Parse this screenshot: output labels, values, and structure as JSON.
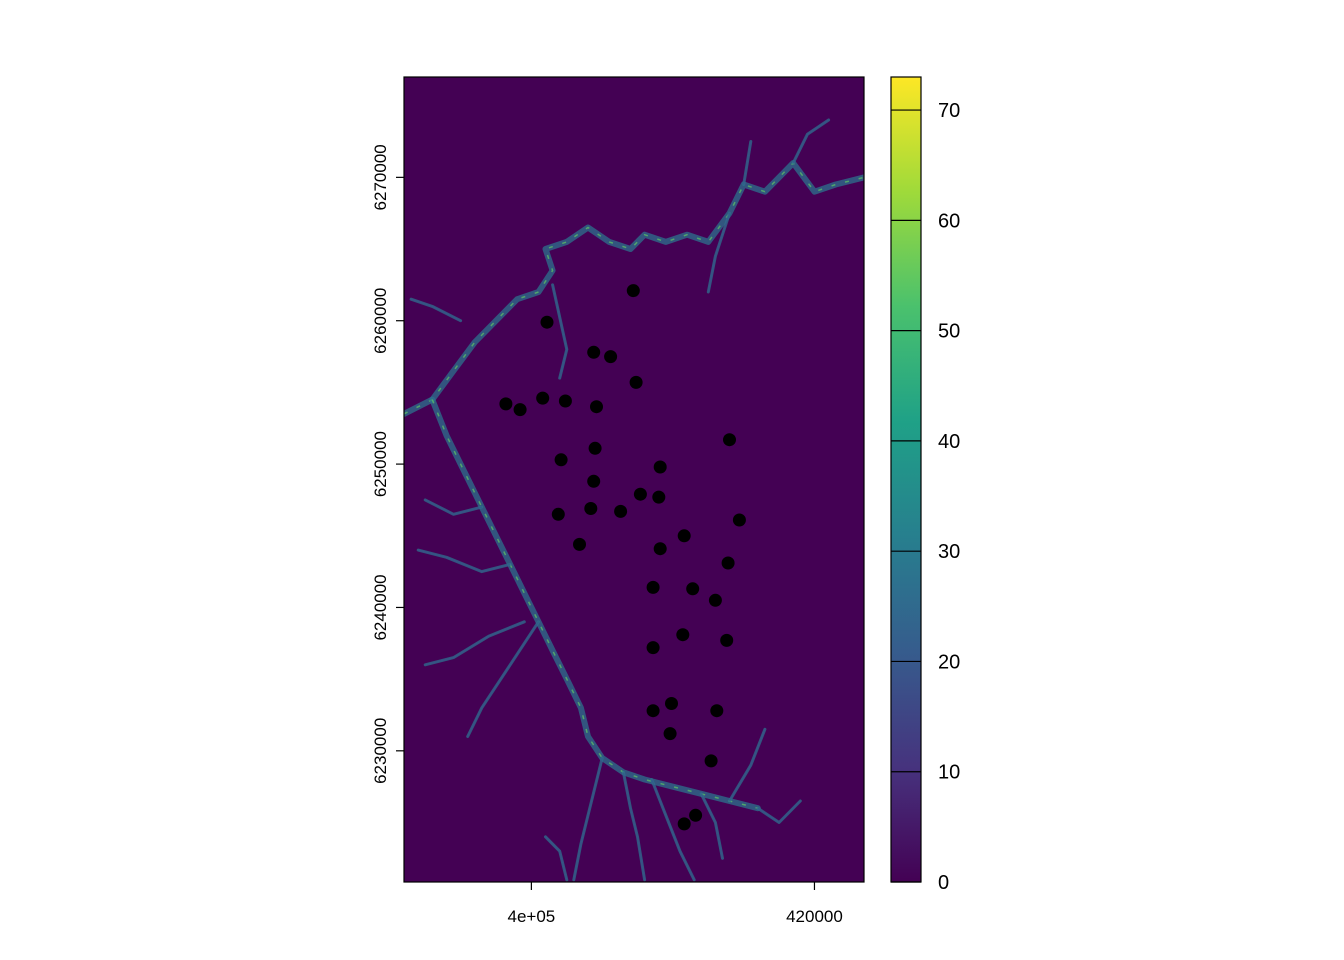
{
  "chart_data": {
    "type": "scatter",
    "title": "",
    "xlabel": "",
    "ylabel": "",
    "raster_fill": "#440154",
    "xlim": [
      391000,
      423500
    ],
    "ylim": [
      6220850,
      6277000
    ],
    "x_ticks": [
      {
        "value": 400000,
        "label": "4e+05"
      },
      {
        "value": 420000,
        "label": "420000"
      }
    ],
    "y_ticks": [
      {
        "value": 6230000,
        "label": "6230000"
      },
      {
        "value": 6240000,
        "label": "6240000"
      },
      {
        "value": 6250000,
        "label": "6250000"
      },
      {
        "value": 6260000,
        "label": "6260000"
      },
      {
        "value": 6270000,
        "label": "6270000"
      }
    ],
    "colorbar": {
      "min": 0,
      "max": 73,
      "ticks": [
        0,
        10,
        20,
        30,
        40,
        50,
        60,
        70
      ],
      "colors": [
        "#440154",
        "#46337E",
        "#365C8D",
        "#277F8E",
        "#1FA187",
        "#4AC16D",
        "#9FDA3A",
        "#FDE725"
      ]
    },
    "river_color": "#2C728E",
    "river_highlight": "#5EC962",
    "rivers": [
      [
        [
          391000,
          6253500
        ],
        [
          393000,
          6254500
        ],
        [
          394500,
          6256500
        ],
        [
          396000,
          6258500
        ],
        [
          397500,
          6260000
        ],
        [
          399000,
          6261500
        ],
        [
          400500,
          6262000
        ],
        [
          401500,
          6263500
        ],
        [
          401000,
          6265000
        ],
        [
          402500,
          6265500
        ],
        [
          404000,
          6266500
        ],
        [
          405500,
          6265500
        ],
        [
          407000,
          6265000
        ],
        [
          408000,
          6266000
        ],
        [
          409500,
          6265500
        ],
        [
          411000,
          6266000
        ],
        [
          412500,
          6265500
        ],
        [
          414000,
          6267500
        ],
        [
          415000,
          6269500
        ],
        [
          416500,
          6269000
        ],
        [
          417500,
          6270000
        ],
        [
          418500,
          6271000
        ],
        [
          420000,
          6269000
        ],
        [
          421500,
          6269500
        ],
        [
          423500,
          6270000
        ]
      ],
      [
        [
          393000,
          6254500
        ],
        [
          394000,
          6252000
        ],
        [
          395000,
          6250000
        ],
        [
          396500,
          6247000
        ],
        [
          397500,
          6245000
        ],
        [
          398500,
          6243000
        ],
        [
          399500,
          6241000
        ],
        [
          400500,
          6239000
        ],
        [
          401500,
          6237000
        ],
        [
          402500,
          6235000
        ],
        [
          403500,
          6233000
        ],
        [
          404000,
          6231000
        ],
        [
          405000,
          6229500
        ],
        [
          406500,
          6228500
        ],
        [
          408000,
          6228000
        ],
        [
          410000,
          6227500
        ],
        [
          412000,
          6227000
        ],
        [
          414000,
          6226500
        ],
        [
          416000,
          6226000
        ]
      ],
      [
        [
          405000,
          6229500
        ],
        [
          404500,
          6227500
        ],
        [
          404000,
          6225500
        ],
        [
          403500,
          6223500
        ],
        [
          403000,
          6221000
        ]
      ],
      [
        [
          406500,
          6228500
        ],
        [
          407000,
          6226000
        ],
        [
          407500,
          6224000
        ],
        [
          408000,
          6221000
        ]
      ],
      [
        [
          408500,
          6228000
        ],
        [
          409500,
          6225500
        ],
        [
          410500,
          6223000
        ],
        [
          411500,
          6221000
        ]
      ],
      [
        [
          401000,
          6224000
        ],
        [
          402000,
          6223000
        ],
        [
          402500,
          6221000
        ]
      ],
      [
        [
          412000,
          6227000
        ],
        [
          413000,
          6225000
        ],
        [
          413500,
          6222500
        ]
      ],
      [
        [
          398500,
          6243000
        ],
        [
          396500,
          6242500
        ],
        [
          394000,
          6243500
        ],
        [
          392000,
          6244000
        ]
      ],
      [
        [
          399500,
          6239000
        ],
        [
          397000,
          6238000
        ],
        [
          394500,
          6236500
        ],
        [
          392500,
          6236000
        ]
      ],
      [
        [
          400500,
          6239000
        ],
        [
          398500,
          6236000
        ],
        [
          396500,
          6233000
        ],
        [
          395500,
          6231000
        ]
      ],
      [
        [
          396500,
          6247000
        ],
        [
          394500,
          6246500
        ],
        [
          392500,
          6247500
        ]
      ],
      [
        [
          401500,
          6262500
        ],
        [
          402500,
          6258000
        ],
        [
          402000,
          6256000
        ]
      ],
      [
        [
          395000,
          6260000
        ],
        [
          393000,
          6261000
        ],
        [
          391500,
          6261500
        ]
      ],
      [
        [
          414000,
          6267500
        ],
        [
          413000,
          6264500
        ],
        [
          412500,
          6262000
        ]
      ],
      [
        [
          418500,
          6271000
        ],
        [
          419500,
          6273000
        ],
        [
          421000,
          6274000
        ]
      ],
      [
        [
          415000,
          6269500
        ],
        [
          415500,
          6272500
        ]
      ],
      [
        [
          416000,
          6226000
        ],
        [
          417500,
          6225000
        ],
        [
          419000,
          6226500
        ]
      ],
      [
        [
          414000,
          6226500
        ],
        [
          415500,
          6229000
        ],
        [
          416500,
          6231500
        ]
      ]
    ],
    "points": [
      [
        407200,
        6262100
      ],
      [
        401100,
        6259900
      ],
      [
        404400,
        6257800
      ],
      [
        405600,
        6257500
      ],
      [
        407400,
        6255700
      ],
      [
        398200,
        6254200
      ],
      [
        399200,
        6253800
      ],
      [
        400800,
        6254600
      ],
      [
        402400,
        6254400
      ],
      [
        404600,
        6254000
      ],
      [
        414000,
        6251700
      ],
      [
        404500,
        6251100
      ],
      [
        402100,
        6250300
      ],
      [
        409100,
        6249800
      ],
      [
        404400,
        6248800
      ],
      [
        407700,
        6247900
      ],
      [
        409000,
        6247700
      ],
      [
        404200,
        6246900
      ],
      [
        406300,
        6246700
      ],
      [
        401900,
        6246500
      ],
      [
        414700,
        6246100
      ],
      [
        410800,
        6245000
      ],
      [
        403400,
        6244400
      ],
      [
        409100,
        6244100
      ],
      [
        413900,
        6243100
      ],
      [
        408600,
        6241400
      ],
      [
        411400,
        6241300
      ],
      [
        413000,
        6240500
      ],
      [
        410700,
        6238100
      ],
      [
        413800,
        6237700
      ],
      [
        408600,
        6237200
      ],
      [
        409900,
        6233300
      ],
      [
        408600,
        6232800
      ],
      [
        413100,
        6232800
      ],
      [
        409800,
        6231200
      ],
      [
        412700,
        6229300
      ],
      [
        411600,
        6225500
      ],
      [
        410800,
        6224900
      ]
    ]
  }
}
